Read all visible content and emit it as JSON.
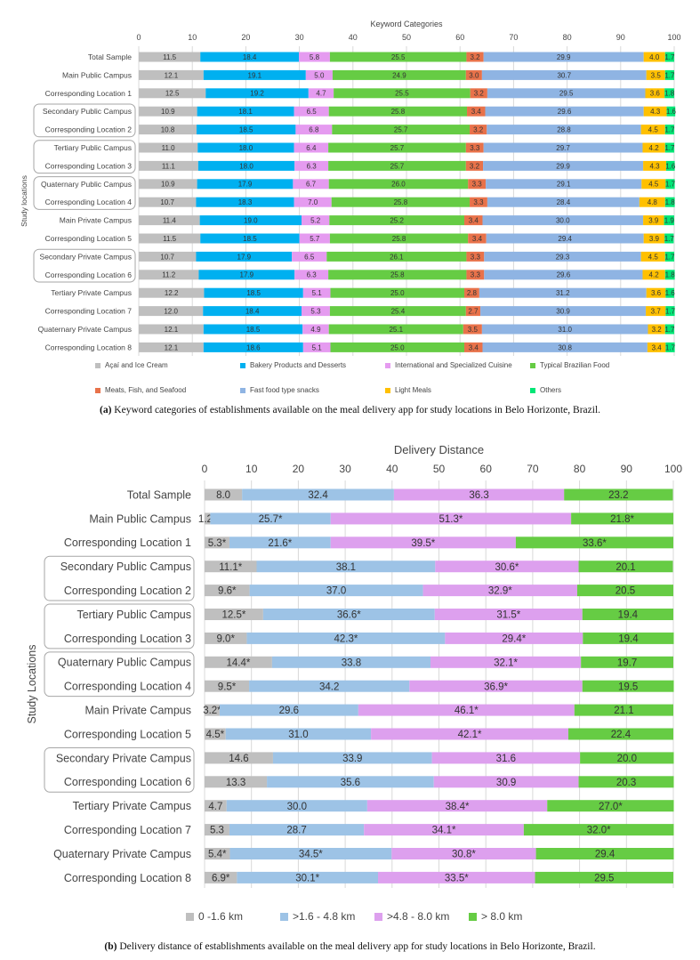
{
  "chart_data": [
    {
      "type": "bar",
      "stacked": "horizontal-100",
      "title": "Keyword Categories",
      "ylabel": "Study locations",
      "xlim": [
        0,
        100
      ],
      "xticks": [
        0,
        10,
        20,
        30,
        40,
        50,
        60,
        70,
        80,
        90,
        100
      ],
      "categories": [
        "Total Sample",
        "Main Public Campus",
        "Corresponding Location 1",
        "Secondary Public Campus",
        "Corresponding Location 2",
        "Tertiary Public Campus",
        "Corresponding Location 3",
        "Quaternary Public Campus",
        "Corresponding Location 4",
        "Main Private Campus",
        "Corresponding Location 5",
        "Secondary Private Campus",
        "Corresponding Location 6",
        "Tertiary Private Campus",
        "Corresponding Location 7",
        "Quaternary Private Campus",
        "Corresponding Location 8"
      ],
      "grouped_pairs": [
        [
          3,
          4
        ],
        [
          5,
          6
        ],
        [
          7,
          8
        ],
        [
          11,
          12
        ]
      ],
      "series": [
        {
          "name": "Açaí and Ice Cream",
          "color": "#bfbfbf",
          "values": [
            11.5,
            12.1,
            12.5,
            10.9,
            10.8,
            11.0,
            11.1,
            10.9,
            10.7,
            11.4,
            11.5,
            10.7,
            11.2,
            12.2,
            12.0,
            12.1,
            12.1
          ]
        },
        {
          "name": "Bakery Products and Desserts",
          "color": "#00b0f0",
          "values": [
            18.4,
            19.1,
            19.2,
            18.1,
            18.5,
            18.0,
            18.0,
            17.9,
            18.3,
            19.0,
            18.5,
            17.9,
            17.9,
            18.5,
            18.4,
            18.5,
            18.6
          ]
        },
        {
          "name": "International and Specialized Cuisine",
          "color": "#e59bf0",
          "values": [
            5.8,
            5.0,
            4.7,
            6.5,
            6.8,
            6.4,
            6.3,
            6.7,
            7.0,
            5.2,
            5.7,
            6.5,
            6.3,
            5.1,
            5.3,
            4.9,
            5.1
          ]
        },
        {
          "name": "Typical Brazilian Food",
          "color": "#66cc44",
          "values": [
            25.5,
            24.9,
            25.5,
            25.8,
            25.7,
            25.7,
            25.7,
            26.0,
            25.8,
            25.2,
            25.8,
            26.1,
            25.8,
            25.0,
            25.4,
            25.1,
            25.0
          ]
        },
        {
          "name": "Meats, Fish, and Seafood",
          "color": "#e8724a",
          "values": [
            3.2,
            3.0,
            3.2,
            3.4,
            3.2,
            3.3,
            3.2,
            3.3,
            3.3,
            3.4,
            3.4,
            3.3,
            3.3,
            2.8,
            2.7,
            3.5,
            3.4
          ]
        },
        {
          "name": "Fast food type snacks",
          "color": "#8fb4e3",
          "values": [
            29.9,
            30.7,
            29.5,
            29.6,
            28.8,
            29.7,
            29.9,
            29.1,
            28.4,
            30.0,
            29.4,
            29.3,
            29.6,
            31.2,
            30.9,
            31.0,
            30.8
          ]
        },
        {
          "name": "Light Meals",
          "color": "#ffc000",
          "values": [
            4.0,
            3.5,
            3.6,
            4.3,
            4.5,
            4.2,
            4.3,
            4.5,
            4.8,
            3.9,
            3.9,
            4.5,
            4.2,
            3.6,
            3.7,
            3.2,
            3.4
          ]
        },
        {
          "name": "Others",
          "color": "#00e676",
          "values": [
            1.7,
            1.7,
            1.8,
            1.6,
            1.7,
            1.7,
            1.6,
            1.7,
            1.8,
            1.9,
            1.7,
            1.7,
            1.8,
            1.6,
            1.7,
            1.7,
            1.7
          ]
        }
      ],
      "legend": "bottom"
    },
    {
      "type": "bar",
      "stacked": "horizontal-100",
      "title": "Delivery Distance",
      "ylabel": "Study Locations",
      "xlim": [
        0,
        100
      ],
      "xticks": [
        0,
        10,
        20,
        30,
        40,
        50,
        60,
        70,
        80,
        90,
        100
      ],
      "categories": [
        "Total Sample",
        "Main Public Campus",
        "Corresponding Location 1",
        "Secondary Public Campus",
        "Corresponding Location 2",
        "Tertiary Public Campus",
        "Corresponding Location 3",
        "Quaternary Public Campus",
        "Corresponding Location 4",
        "Main Private Campus",
        "Corresponding Location 5",
        "Secondary Private Campus",
        "Corresponding Location 6",
        "Tertiary Private Campus",
        "Corresponding Location 7",
        "Quaternary Private Campus",
        "Corresponding Location 8"
      ],
      "grouped_pairs": [
        [
          3,
          4
        ],
        [
          5,
          6
        ],
        [
          7,
          8
        ],
        [
          11,
          12
        ]
      ],
      "series": [
        {
          "name": "0 -1.6 km",
          "color": "#bfbfbf",
          "values": [
            8.0,
            1.2,
            5.3,
            11.1,
            9.6,
            12.5,
            9.0,
            14.4,
            9.5,
            3.2,
            4.5,
            14.6,
            13.3,
            4.7,
            5.3,
            5.4,
            6.9
          ],
          "significant": [
            false,
            true,
            true,
            true,
            true,
            true,
            true,
            true,
            true,
            true,
            true,
            false,
            false,
            false,
            false,
            true,
            true
          ]
        },
        {
          "name": ">1.6 - 4.8 km",
          "color": "#9dc3e6",
          "values": [
            32.4,
            25.7,
            21.6,
            38.1,
            37.0,
            36.6,
            42.3,
            33.8,
            34.2,
            29.6,
            31.0,
            33.9,
            35.6,
            30.0,
            28.7,
            34.5,
            30.1
          ],
          "significant": [
            false,
            true,
            true,
            false,
            false,
            true,
            true,
            false,
            false,
            false,
            false,
            false,
            false,
            false,
            false,
            true,
            true
          ]
        },
        {
          "name": ">4.8 - 8.0 km",
          "color": "#dda0ee",
          "values": [
            36.3,
            51.3,
            39.5,
            30.6,
            32.9,
            31.5,
            29.4,
            32.1,
            36.9,
            46.1,
            42.1,
            31.6,
            30.9,
            38.4,
            34.1,
            30.8,
            33.5
          ],
          "significant": [
            false,
            true,
            true,
            true,
            true,
            true,
            true,
            true,
            true,
            true,
            true,
            false,
            false,
            true,
            true,
            true,
            true
          ]
        },
        {
          "name": "> 8.0 km",
          "color": "#66cc44",
          "values": [
            23.2,
            21.8,
            33.6,
            20.1,
            20.5,
            19.4,
            19.4,
            19.7,
            19.5,
            21.1,
            22.4,
            20.0,
            20.3,
            27.0,
            32.0,
            29.4,
            29.5
          ],
          "significant": [
            false,
            true,
            true,
            false,
            false,
            false,
            false,
            false,
            false,
            false,
            false,
            false,
            false,
            true,
            true,
            false,
            false
          ]
        }
      ],
      "significance_marker": "*",
      "legend": "bottom"
    }
  ],
  "captions": {
    "a_label": "(a)",
    "a_text": " Keyword categories of establishments available on the meal delivery app for study locations in Belo Horizonte, Brazil.",
    "b_label": "(b)",
    "b_text": " Delivery distance of establishments available on the meal delivery app for study locations in Belo Horizonte, Brazil."
  }
}
